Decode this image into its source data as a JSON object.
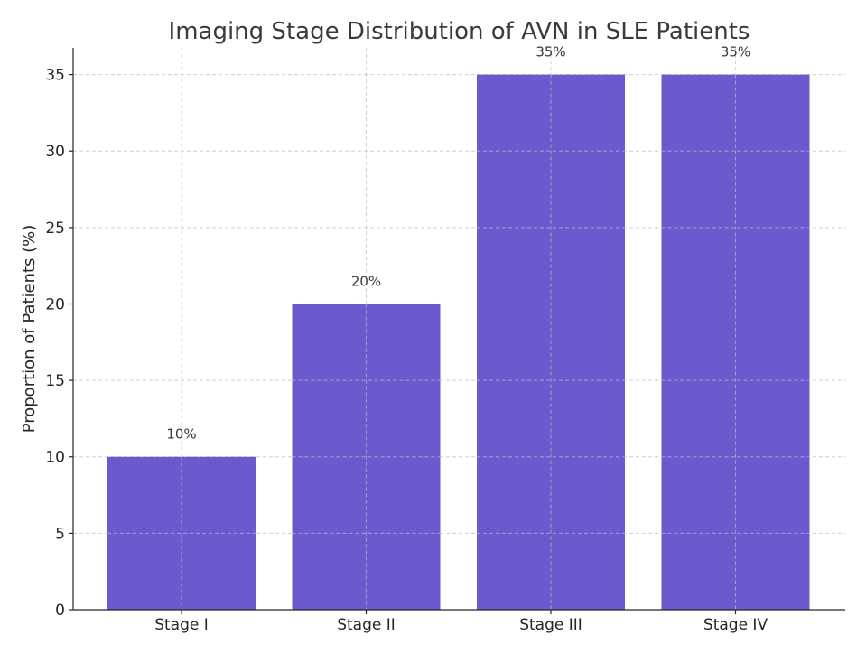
{
  "chart_data": {
    "type": "bar",
    "title": "Imaging Stage Distribution of AVN in SLE Patients",
    "xlabel": "",
    "ylabel": "Proportion of Patients (%)",
    "categories": [
      "Stage I",
      "Stage II",
      "Stage III",
      "Stage IV"
    ],
    "values": [
      10,
      20,
      35,
      35
    ],
    "data_labels": [
      "10%",
      "20%",
      "35%",
      "35%"
    ],
    "ylim": [
      0,
      36.75
    ],
    "yticks": [
      0,
      5,
      10,
      15,
      20,
      25,
      30,
      35
    ],
    "grid": true,
    "bar_color": "#6a5acd"
  }
}
